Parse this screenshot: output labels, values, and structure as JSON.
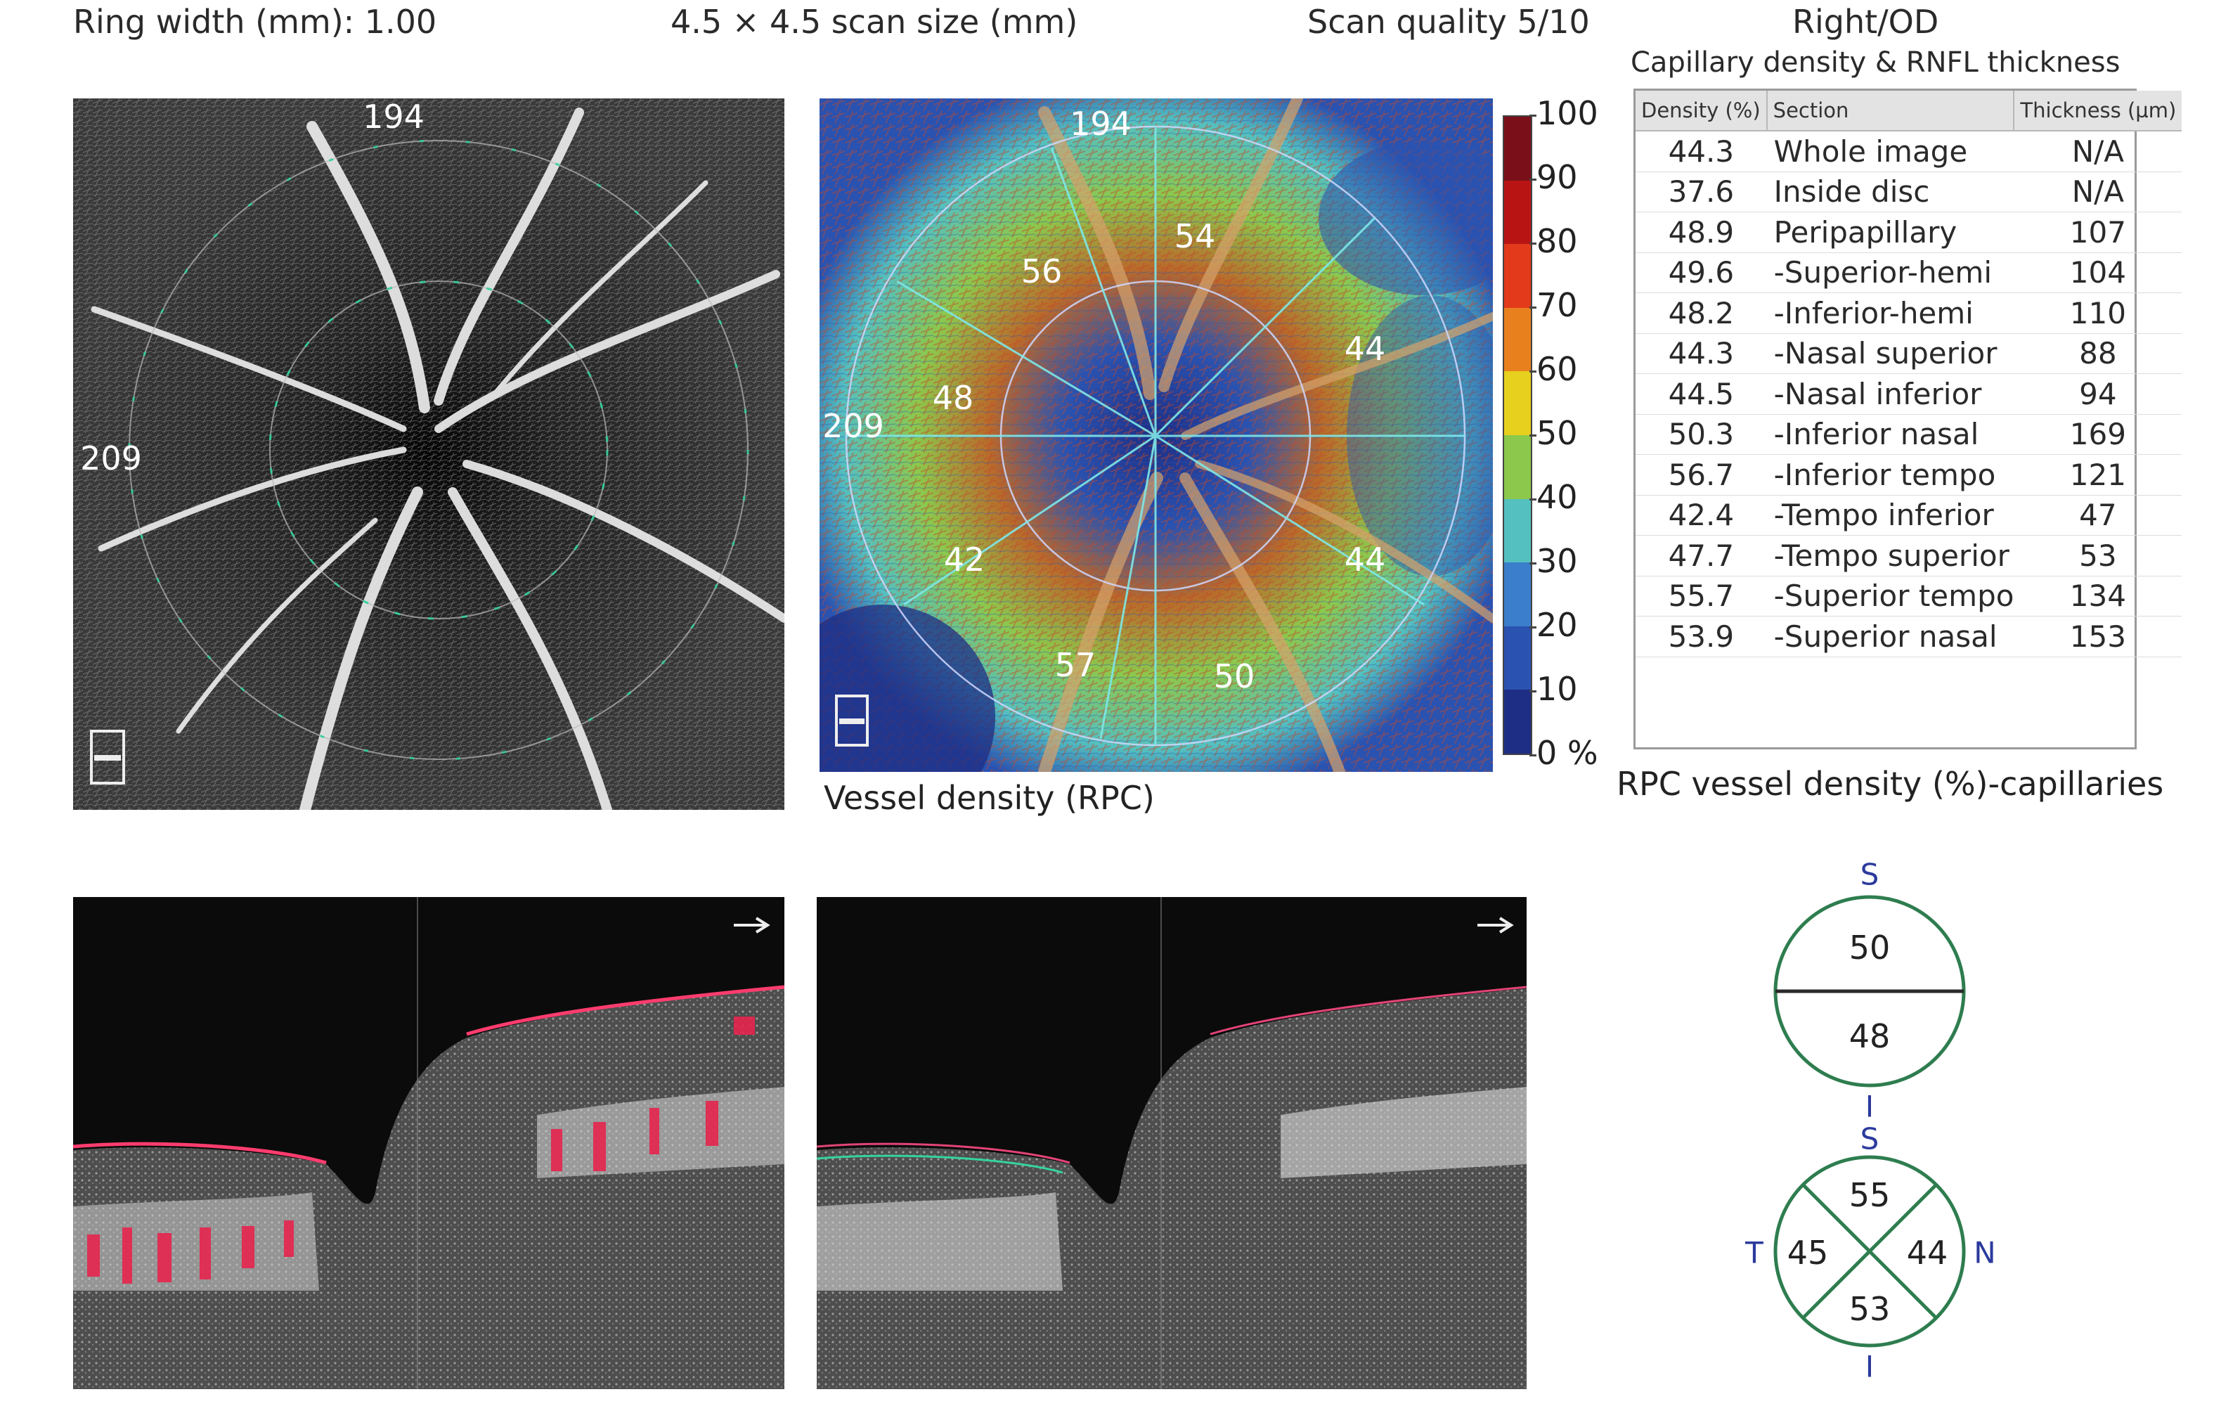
{
  "header": {
    "ring_width": "Ring width (mm): 1.00",
    "scan_size": "4.5 × 4.5 scan size (mm)",
    "scan_quality": "Scan quality 5/10",
    "eye": "Right/OD"
  },
  "left_image": {
    "label_top": "194",
    "label_left": "209"
  },
  "density_map": {
    "labels": {
      "top": "194",
      "left": "209",
      "s_temporal": "56",
      "s_nasal": "54",
      "nasal_sup": "44",
      "temporal": "48",
      "temporal_inf": "42",
      "nasal_inf": "44",
      "inf_temporal": "57",
      "inf_nasal": "50"
    },
    "caption": "Vessel density (RPC)"
  },
  "colorbar": {
    "ticks": [
      "100",
      "90",
      "80",
      "70",
      "60",
      "50",
      "40",
      "30",
      "20",
      "10",
      "0 %"
    ],
    "colors": [
      "#7a0f1a",
      "#b81414",
      "#e23a1a",
      "#e8801e",
      "#e8d01e",
      "#8cc84c",
      "#54c0c0",
      "#3a7ecc",
      "#2a52b0",
      "#1e2e84"
    ]
  },
  "capillary_panel": {
    "title": "Capillary density & RNFL thickness",
    "headers": [
      "Density (%)",
      "Section",
      "Thickness (µm)"
    ],
    "rows": [
      {
        "density": "44.3",
        "section": "Whole image",
        "thickness": "N/A"
      },
      {
        "density": "37.6",
        "section": "Inside disc",
        "thickness": "N/A"
      },
      {
        "density": "48.9",
        "section": "Peripapillary",
        "thickness": "107"
      },
      {
        "density": "49.6",
        "section": "-Superior-hemi",
        "thickness": "104"
      },
      {
        "density": "48.2",
        "section": "-Inferior-hemi",
        "thickness": "110"
      },
      {
        "density": "44.3",
        "section": "-Nasal superior",
        "thickness": "88"
      },
      {
        "density": "44.5",
        "section": "-Nasal inferior",
        "thickness": "94"
      },
      {
        "density": "50.3",
        "section": "-Inferior nasal",
        "thickness": "169"
      },
      {
        "density": "56.7",
        "section": "-Inferior tempo",
        "thickness": "121"
      },
      {
        "density": "42.4",
        "section": "-Tempo inferior",
        "thickness": "47"
      },
      {
        "density": "47.7",
        "section": "-Tempo superior",
        "thickness": "53"
      },
      {
        "density": "55.7",
        "section": "-Superior tempo",
        "thickness": "134"
      },
      {
        "density": "53.9",
        "section": "-Superior nasal",
        "thickness": "153"
      }
    ],
    "caption": "RPC vessel density (%)-capillaries"
  },
  "hemi_diagram": {
    "top_label": "S",
    "bottom_label": "I",
    "superior": "50",
    "inferior": "48"
  },
  "quadrant_diagram": {
    "top_label": "S",
    "bottom_label": "I",
    "left_label": "T",
    "right_label": "N",
    "superior": "55",
    "temporal": "45",
    "nasal": "44",
    "inferior": "53"
  }
}
